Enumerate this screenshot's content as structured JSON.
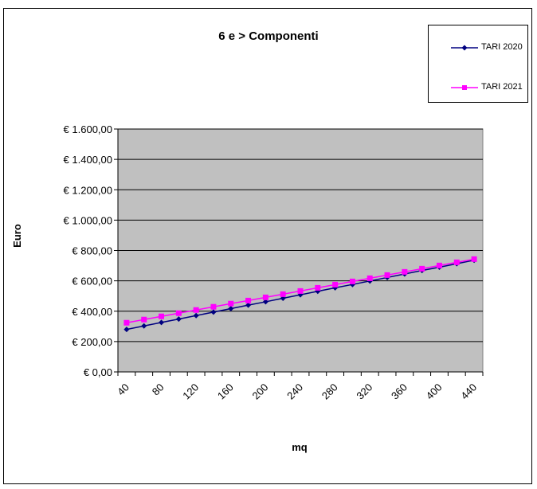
{
  "chart_data": {
    "type": "line",
    "title": "6 e > Componenti",
    "xlabel": "mq",
    "ylabel": "Euro",
    "x": [
      40,
      60,
      80,
      100,
      120,
      140,
      160,
      180,
      200,
      220,
      240,
      260,
      280,
      300,
      320,
      340,
      360,
      380,
      400,
      420,
      440
    ],
    "x_tick_labels": [
      "40",
      "80",
      "120",
      "160",
      "200",
      "240",
      "280",
      "320",
      "360",
      "400",
      "440"
    ],
    "y_tick_labels": [
      "€ 0,00",
      "€ 200,00",
      "€ 400,00",
      "€ 600,00",
      "€ 800,00",
      "€ 1.000,00",
      "€ 1.200,00",
      "€ 1.400,00",
      "€ 1.600,00"
    ],
    "ylim": [
      0,
      1600
    ],
    "y_step": 200,
    "grid": true,
    "plot_background": "#c0c0c0",
    "legend_position": "top-right",
    "series": [
      {
        "name": "TARI 2020",
        "color": "#000080",
        "marker": "diamond",
        "values": [
          280,
          303,
          326,
          348,
          371,
          394,
          417,
          440,
          462,
          485,
          508,
          531,
          554,
          576,
          599,
          622,
          645,
          668,
          690,
          713,
          736
        ]
      },
      {
        "name": "TARI 2021",
        "color": "#ff00ff",
        "marker": "square",
        "values": [
          324,
          345,
          366,
          387,
          408,
          429,
          450,
          470,
          491,
          512,
          533,
          554,
          575,
          596,
          617,
          638,
          659,
          680,
          701,
          722,
          743
        ]
      }
    ]
  }
}
